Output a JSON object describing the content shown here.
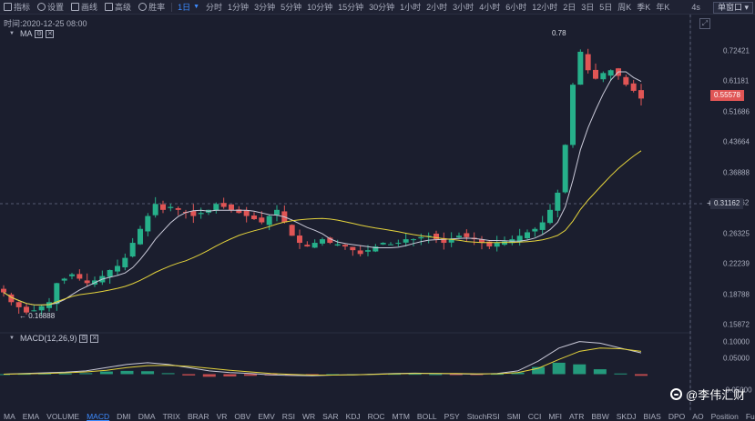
{
  "toolbar": {
    "buttons": [
      {
        "label": "指标",
        "icon": "indicator-icon"
      },
      {
        "label": "设置",
        "icon": "settings-icon"
      },
      {
        "label": "画线",
        "icon": "draw-line-icon"
      },
      {
        "label": "高级",
        "icon": "advanced-icon"
      },
      {
        "label": "胜率",
        "icon": "win-rate-icon"
      }
    ],
    "intervals": [
      "1日",
      "分时",
      "1分钟",
      "3分钟",
      "5分钟",
      "10分钟",
      "15分钟",
      "30分钟",
      "1小时",
      "2小时",
      "3小时",
      "4小时",
      "6小时",
      "12小时",
      "2日",
      "3日",
      "5日",
      "周K",
      "季K",
      "年K"
    ],
    "active_interval": "1日",
    "refresh": "4s",
    "layout_select": "单窗口"
  },
  "time_label": "时间:2020-12-25 08:00",
  "main_indicator": {
    "name": "MA"
  },
  "sub_indicator": {
    "name": "MACD(12,26,9)"
  },
  "price_axis": {
    "ticks": [
      "0.72421",
      "0.61181",
      "0.51686",
      "0.43664",
      "0.36888",
      "0.31162",
      "0.26325",
      "0.22239",
      "0.18788",
      "0.15872"
    ]
  },
  "current_price": "0.55578",
  "crosshair_price": "0.31162",
  "crosshair_plus": "+",
  "high_marker": "0.78",
  "low_marker": "0.16888",
  "macd_axis": {
    "ticks": [
      "0.10000",
      "0.05000",
      "-0.05000"
    ]
  },
  "indicator_tabs": [
    "MA",
    "EMA",
    "VOLUME",
    "MACD",
    "DMI",
    "DMA",
    "TRIX",
    "BRAR",
    "VR",
    "OBV",
    "EMV",
    "RSI",
    "WR",
    "SAR",
    "KDJ",
    "ROC",
    "MTM",
    "BOLL",
    "PSY",
    "StochRSI",
    "SMI",
    "CCI",
    "MFI",
    "ATR",
    "BBW",
    "SKDJ",
    "BIAS",
    "DPO",
    "AO",
    "Position",
    "Fundflow"
  ],
  "active_indicator_tab": "MACD",
  "watermark": "@李伟汇财",
  "colors": {
    "up": "#26b08a",
    "down": "#e05555",
    "ma_fast": "#c9c9d8",
    "ma_slow": "#e4d33c",
    "accent": "#3d8bff",
    "background": "#1b1e2e"
  },
  "chart_data": {
    "type": "candlestick",
    "interval": "1日",
    "y_scale": "log",
    "ylim": [
      0.155,
      0.8
    ],
    "high": 0.78,
    "low": 0.16888,
    "close_path": [
      0.19,
      0.18,
      0.175,
      0.17,
      0.172,
      0.176,
      0.18,
      0.2,
      0.205,
      0.21,
      0.205,
      0.2,
      0.203,
      0.208,
      0.215,
      0.22,
      0.23,
      0.25,
      0.27,
      0.29,
      0.31,
      0.3,
      0.305,
      0.3,
      0.295,
      0.29,
      0.295,
      0.3,
      0.31,
      0.305,
      0.3,
      0.295,
      0.29,
      0.285,
      0.28,
      0.29,
      0.3,
      0.28,
      0.26,
      0.25,
      0.245,
      0.25,
      0.255,
      0.25,
      0.248,
      0.245,
      0.24,
      0.235,
      0.24,
      0.245,
      0.25,
      0.248,
      0.25,
      0.255,
      0.255,
      0.258,
      0.26,
      0.255,
      0.25,
      0.255,
      0.26,
      0.258,
      0.255,
      0.25,
      0.245,
      0.25,
      0.252,
      0.255,
      0.26,
      0.265,
      0.27,
      0.28,
      0.3,
      0.33,
      0.43,
      0.6,
      0.72,
      0.65,
      0.62,
      0.64,
      0.65,
      0.63,
      0.6,
      0.58,
      0.5557
    ],
    "macd_ylim": [
      -0.06,
      0.11
    ],
    "macd_dif": [
      0.0,
      0.002,
      0.004,
      0.006,
      0.01,
      0.02,
      0.03,
      0.035,
      0.03,
      0.02,
      0.01,
      0.005,
      0.002,
      -0.002,
      -0.004,
      -0.005,
      -0.003,
      -0.002,
      0.0,
      0.002,
      0.003,
      0.002,
      0.001,
      0.0,
      0.002,
      0.01,
      0.04,
      0.08,
      0.1,
      0.095,
      0.08,
      0.065
    ],
    "macd_dea": [
      0.0,
      0.001,
      0.002,
      0.004,
      0.007,
      0.012,
      0.02,
      0.026,
      0.027,
      0.024,
      0.018,
      0.012,
      0.007,
      0.002,
      -0.001,
      -0.003,
      -0.003,
      -0.002,
      -0.001,
      0.001,
      0.002,
      0.002,
      0.002,
      0.001,
      0.001,
      0.005,
      0.018,
      0.045,
      0.07,
      0.08,
      0.078,
      0.07
    ]
  }
}
